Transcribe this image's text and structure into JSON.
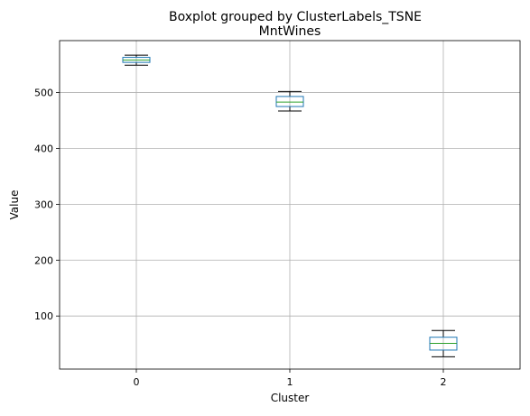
{
  "chart_data": {
    "type": "boxplot",
    "suptitle": "Boxplot grouped by ClusterLabels_TSNE",
    "title": "MntWines",
    "xlabel": "Cluster",
    "ylabel": "Value",
    "categories": [
      "0",
      "1",
      "2"
    ],
    "boxes": [
      {
        "category": "0",
        "whisker_low": 549,
        "q1": 554,
        "median": 558,
        "q3": 563,
        "whisker_high": 567
      },
      {
        "category": "1",
        "whisker_low": 467,
        "q1": 475,
        "median": 483,
        "q3": 493,
        "whisker_high": 502
      },
      {
        "category": "2",
        "whisker_low": 27,
        "q1": 39,
        "median": 51,
        "q3": 62,
        "whisker_high": 74
      }
    ],
    "ylim": [
      5,
      593
    ],
    "yticks": [
      100,
      200,
      300,
      400,
      500
    ],
    "grid": true,
    "colors": {
      "box": "#1f77b4",
      "median": "#2ca02c",
      "whisker": "#000000",
      "grid": "#b0b0b0"
    }
  }
}
